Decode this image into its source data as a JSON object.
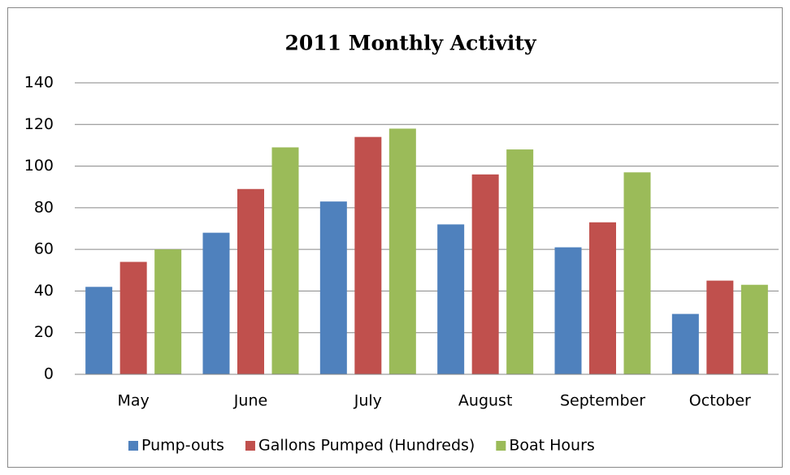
{
  "chart_data": {
    "type": "bar",
    "title": "2011 Monthly Activity",
    "categories": [
      "May",
      "June",
      "July",
      "August",
      "September",
      "October"
    ],
    "series": [
      {
        "name": "Pump-outs",
        "color": "#4f81bd",
        "values": [
          42,
          68,
          83,
          72,
          61,
          29
        ]
      },
      {
        "name": "Gallons Pumped (Hundreds)",
        "color": "#c0504d",
        "values": [
          54,
          89,
          114,
          96,
          73,
          45
        ]
      },
      {
        "name": "Boat Hours",
        "color": "#9bbb59",
        "values": [
          60,
          109,
          118,
          108,
          97,
          43
        ]
      }
    ],
    "ylim": [
      0,
      140
    ],
    "yticks": [
      0,
      20,
      40,
      60,
      80,
      100,
      120,
      140
    ],
    "grid": true,
    "legend": "bottom"
  }
}
